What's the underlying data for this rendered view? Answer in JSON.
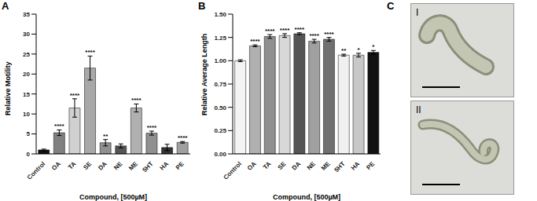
{
  "chart_data": [
    {
      "type": "bar",
      "panel_label": "A",
      "categories": [
        "Control",
        "OA",
        "TA",
        "SE",
        "DA",
        "NE",
        "ME",
        "5HT",
        "HA",
        "PE"
      ],
      "values": [
        1.0,
        5.3,
        11.5,
        21.5,
        2.8,
        2.0,
        11.5,
        5.2,
        1.6,
        2.9
      ],
      "errors": [
        0.2,
        0.7,
        2.3,
        3.0,
        0.8,
        0.5,
        1.0,
        0.5,
        0.8,
        0.2
      ],
      "significance": [
        null,
        "****",
        "****",
        "****",
        "**",
        null,
        "****",
        "****",
        null,
        "****"
      ],
      "colors": [
        "#111111",
        "#808080",
        "#d0d0d0",
        "#a8a8a8",
        "#909090",
        "#555555",
        "#b0b0b0",
        "#909090",
        "#333333",
        "#a0a0a0"
      ],
      "x_label": "Compound, [500µM]",
      "y_label": "Relative Motility",
      "ylim": [
        0,
        35
      ],
      "yticks": [
        0,
        5,
        10,
        15,
        20,
        25,
        30,
        35
      ],
      "grid": false
    },
    {
      "type": "bar",
      "panel_label": "B",
      "categories": [
        "Control",
        "OA",
        "TA",
        "SE",
        "DA",
        "NE",
        "ME",
        "5HT",
        "HA",
        "PE"
      ],
      "values": [
        1.0,
        1.16,
        1.26,
        1.27,
        1.29,
        1.21,
        1.23,
        1.06,
        1.06,
        1.09
      ],
      "errors": [
        0.01,
        0.01,
        0.02,
        0.02,
        0.01,
        0.02,
        0.02,
        0.01,
        0.02,
        0.02
      ],
      "significance": [
        null,
        "****",
        "****",
        "****",
        "****",
        "****",
        "****",
        "**",
        "*",
        "*"
      ],
      "colors": [
        "#f4f4f4",
        "#b0b0b0",
        "#909090",
        "#d8d8d8",
        "#555555",
        "#a0a0a0",
        "#707070",
        "#f0f0f0",
        "#c8c8c8",
        "#111111"
      ],
      "x_label": "Compound, [500µM]",
      "y_label": "Relative Average Length",
      "ylim": [
        0,
        1.5
      ],
      "yticks": [
        {
          "value": 0,
          "label": "0.00"
        },
        {
          "value": 0.25,
          "label": "0.25"
        },
        {
          "value": 0.5,
          "label": "0.50"
        },
        {
          "value": 0.75,
          "label": "0.75"
        },
        {
          "value": 1.0,
          "label": "1.00"
        },
        {
          "value": 1.25,
          "label": "1.25"
        },
        {
          "value": 1.5,
          "label": "1.50"
        }
      ],
      "grid": false
    }
  ],
  "images_panel": {
    "panel_label": "C",
    "images": [
      {
        "label": "I"
      },
      {
        "label": "II"
      }
    ]
  }
}
